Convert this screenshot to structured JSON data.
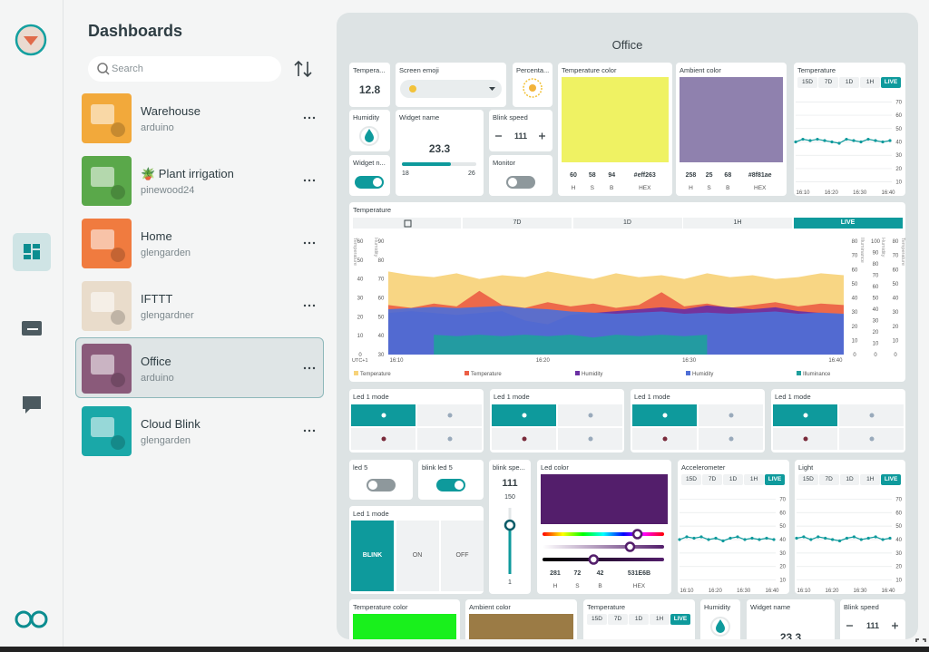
{
  "sidebar": {
    "title": "Dashboards",
    "search_placeholder": "Search",
    "items": [
      {
        "name": "Warehouse",
        "owner": "arduino",
        "thumb": "#f2a93b"
      },
      {
        "name": "🪴 Plant irrigation",
        "owner": "pinewood24",
        "thumb": "#5aa84a"
      },
      {
        "name": "Home",
        "owner": "glengarden",
        "thumb": "#f07b3f"
      },
      {
        "name": "IFTTT",
        "owner": "glengardner",
        "thumb": "#e9dccb"
      },
      {
        "name": "Office",
        "owner": "arduino",
        "thumb": "#8a5a7a",
        "selected": true
      },
      {
        "name": "Cloud Blink",
        "owner": "glengarden",
        "thumb": "#1aa8a8"
      }
    ]
  },
  "dashboard": {
    "title": "Office",
    "tabs": [
      "15D",
      "7D",
      "1D",
      "1H",
      "LIVE"
    ],
    "hsb_labels": [
      "H",
      "S",
      "B",
      "HEX"
    ],
    "mini_chart_axis": {
      "ylim": [
        5,
        75
      ],
      "yticks": [
        10,
        20,
        30,
        40,
        50,
        60,
        70
      ],
      "xticks": [
        "16:10",
        "16:20",
        "16:30",
        "16:40"
      ]
    },
    "widgets": {
      "temperature": {
        "label": "Tempera...",
        "value": 12.8
      },
      "screen_emoji": {
        "label": "Screen emoji"
      },
      "percentage": {
        "label": "Percenta..."
      },
      "temperature_color": {
        "label": "Temperature color",
        "color": "#eff263",
        "h": 60,
        "s": 58,
        "b": 94,
        "hex": "#eff263"
      },
      "ambient_color": {
        "label": "Ambient color",
        "color": "#8f81ae",
        "h": 258,
        "s": 25,
        "b": 68,
        "hex": "#8f81ae"
      },
      "temperature_chart": {
        "label": "Temperature",
        "values": [
          40,
          42,
          41,
          42,
          41,
          40,
          39,
          42,
          41,
          40,
          42,
          41,
          40,
          41
        ]
      },
      "humidity": {
        "label": "Humidity"
      },
      "widget_name": {
        "label": "Widget name",
        "value": 23.3,
        "min": 18,
        "max": 26
      },
      "blink_speed": {
        "label": "Blink speed",
        "value": 111
      },
      "widget_switch": {
        "label": "Widget n...",
        "on": true
      },
      "monitor": {
        "label": "Monitor",
        "on": false
      },
      "led_modes": [
        {
          "label": "Led 1 mode"
        },
        {
          "label": "Led 1 mode"
        },
        {
          "label": "Led 1 mode"
        },
        {
          "label": "Led 1 mode"
        }
      ],
      "led5": {
        "label": "led 5",
        "on": false
      },
      "blink_led5": {
        "label": "blink led 5",
        "on": true
      },
      "blink_speed_slider": {
        "label": "blink spe...",
        "value": 111,
        "max": 150,
        "min": 1
      },
      "led_color": {
        "label": "Led color",
        "color": "#531e6b",
        "h": 281,
        "s": 72,
        "b": 42,
        "hex": "531E6B"
      },
      "accelerometer": {
        "label": "Accelerometer",
        "values": [
          40,
          42,
          41,
          42,
          40,
          41,
          39,
          41,
          42,
          40,
          41,
          40,
          41,
          40
        ]
      },
      "light": {
        "label": "Light",
        "values": [
          41,
          42,
          40,
          42,
          41,
          40,
          39,
          41,
          42,
          40,
          41,
          42,
          40,
          41
        ]
      },
      "led_mode_buttons": {
        "label": "Led 1 mode",
        "buttons": [
          "BLINK",
          "ON",
          "OFF"
        ],
        "active": 0
      },
      "temperature_color_2": {
        "label": "Temperature color",
        "color": "#19f01c"
      },
      "ambient_color_2": {
        "label": "Ambient color",
        "color": "#9b7b45"
      },
      "temperature_chart_2": {
        "label": "Temperature"
      },
      "humidity_2": {
        "label": "Humidity"
      },
      "widget_name_2": {
        "label": "Widget name",
        "value": 23.3
      },
      "blink_speed_2": {
        "label": "Blink speed",
        "value": 111
      }
    },
    "main_chart": {
      "label": "Temperature",
      "tabs": [
        "7D",
        "1D",
        "1H",
        "LIVE"
      ],
      "xticks": [
        "16:10",
        "16:20",
        "16:30",
        "16:40"
      ],
      "timezone": "UTC+1",
      "axes": [
        {
          "title": "Temperature",
          "side": "left",
          "ylim": [
            0,
            60
          ],
          "yticks": [
            0,
            10,
            20,
            30,
            40,
            50,
            60
          ]
        },
        {
          "title": "Humidity",
          "side": "left",
          "ylim": [
            30,
            90
          ],
          "yticks": [
            30,
            40,
            50,
            60,
            70,
            80,
            90
          ]
        },
        {
          "title": "Illuminance",
          "side": "right",
          "ylim": [
            0,
            80
          ],
          "yticks": [
            0,
            10,
            20,
            30,
            40,
            50,
            60,
            70,
            80
          ]
        },
        {
          "title": "Humidity",
          "side": "right",
          "ylim": [
            0,
            100
          ],
          "yticks": [
            0,
            10,
            20,
            30,
            40,
            50,
            60,
            70,
            80,
            90,
            100
          ]
        },
        {
          "title": "Temperature",
          "side": "right",
          "ylim": [
            0,
            80
          ],
          "yticks": [
            0,
            10,
            20,
            30,
            40,
            50,
            60,
            70,
            80
          ]
        }
      ],
      "series": [
        {
          "name": "Temperature",
          "color": "#f7d37a",
          "axis": 0,
          "values": [
            44,
            42,
            41,
            43,
            40,
            42,
            41,
            44,
            42,
            40,
            43,
            41,
            42,
            40,
            43,
            41,
            42,
            40,
            41,
            43,
            42
          ]
        },
        {
          "name": "Temperature",
          "color": "#ec5f45",
          "axis": 4,
          "values": [
            35,
            33,
            36,
            34,
            45,
            35,
            33,
            37,
            34,
            36,
            33,
            35,
            44,
            34,
            36,
            33,
            35,
            37,
            34,
            36,
            35
          ]
        },
        {
          "name": "Humidity",
          "color": "#6a2fa3",
          "axis": 1,
          "values": [
            52,
            53,
            52,
            51,
            52,
            53,
            48,
            46,
            51,
            52,
            53,
            54,
            55,
            54,
            56,
            55,
            54,
            55,
            53,
            52,
            51
          ]
        },
        {
          "name": "Humidity",
          "color": "#4f6fd6",
          "axis": 3,
          "values": [
            40,
            41,
            42,
            41,
            42,
            43,
            41,
            40,
            38,
            37,
            36,
            37,
            38,
            36,
            37,
            36,
            37,
            38,
            36,
            37,
            36
          ]
        },
        {
          "name": "Illuminance",
          "color": "#1f9f9c",
          "axis": 2,
          "values": [
            null,
            null,
            14,
            13,
            14,
            13,
            14,
            13,
            14,
            12,
            14,
            13,
            14,
            13,
            14,
            null,
            null,
            null,
            null,
            null,
            null
          ]
        }
      ]
    }
  }
}
